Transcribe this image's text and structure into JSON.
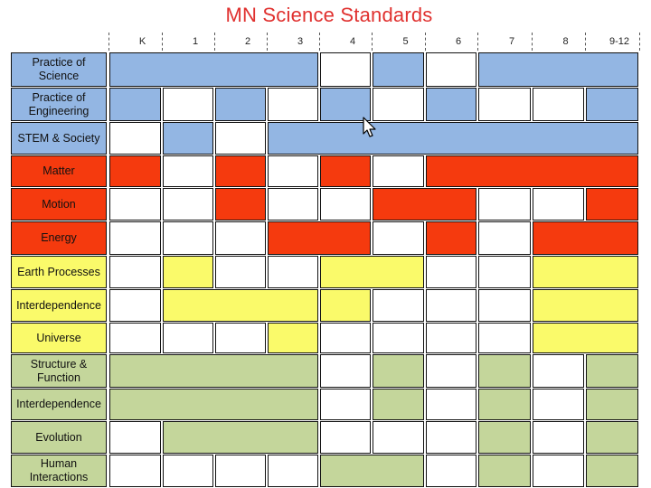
{
  "title": "MN Science Standards",
  "grades": [
    "K",
    "1",
    "2",
    "3",
    "4",
    "5",
    "6",
    "7",
    "8",
    "9-12"
  ],
  "colors": {
    "practices": "#93b6e3",
    "physical": "#f53a0e",
    "earth_space": "#fafa6a",
    "life": "#c4d69b",
    "empty": "#ffffff"
  },
  "rows": [
    {
      "label": "Practice of Science",
      "color_key": "practices",
      "bars": [
        [
          0,
          3
        ],
        [
          5,
          5
        ],
        [
          7,
          9
        ]
      ]
    },
    {
      "label": "Practice of Engineering",
      "color_key": "practices",
      "bars": [
        [
          0,
          0
        ],
        [
          2,
          2
        ],
        [
          4,
          4
        ],
        [
          6,
          6
        ],
        [
          9,
          9
        ]
      ]
    },
    {
      "label": "STEM & Society",
      "color_key": "practices",
      "bars": [
        [
          1,
          1
        ],
        [
          3,
          9
        ]
      ]
    },
    {
      "label": "Matter",
      "color_key": "physical",
      "bars": [
        [
          0,
          0
        ],
        [
          2,
          2
        ],
        [
          4,
          4
        ],
        [
          6,
          9
        ]
      ]
    },
    {
      "label": "Motion",
      "color_key": "physical",
      "bars": [
        [
          2,
          2
        ],
        [
          5,
          6
        ],
        [
          9,
          9
        ]
      ]
    },
    {
      "label": "Energy",
      "color_key": "physical",
      "bars": [
        [
          3,
          4
        ],
        [
          6,
          6
        ],
        [
          8,
          9
        ]
      ]
    },
    {
      "label": "Earth Processes",
      "color_key": "earth_space",
      "bars": [
        [
          1,
          1
        ],
        [
          4,
          5
        ],
        [
          8,
          9
        ]
      ]
    },
    {
      "label": "Interdependence",
      "color_key": "earth_space",
      "bars": [
        [
          1,
          3
        ],
        [
          4,
          4
        ],
        [
          8,
          9
        ]
      ]
    },
    {
      "label": "Universe",
      "color_key": "earth_space",
      "bars": [
        [
          3,
          3
        ],
        [
          8,
          9
        ]
      ]
    },
    {
      "label": "Structure & Function",
      "color_key": "life",
      "bars": [
        [
          0,
          3
        ],
        [
          5,
          5
        ],
        [
          7,
          7
        ],
        [
          9,
          9
        ]
      ]
    },
    {
      "label": "Interdependence",
      "color_key": "life",
      "bars": [
        [
          0,
          3
        ],
        [
          5,
          5
        ],
        [
          7,
          7
        ],
        [
          9,
          9
        ]
      ]
    },
    {
      "label": "Evolution",
      "color_key": "life",
      "bars": [
        [
          1,
          3
        ],
        [
          7,
          7
        ],
        [
          9,
          9
        ]
      ]
    },
    {
      "label": "Human Interactions",
      "color_key": "life",
      "bars": [
        [
          4,
          5
        ],
        [
          7,
          7
        ],
        [
          9,
          9
        ]
      ]
    }
  ],
  "icons": {
    "cursor": "mouse-pointer-icon"
  }
}
